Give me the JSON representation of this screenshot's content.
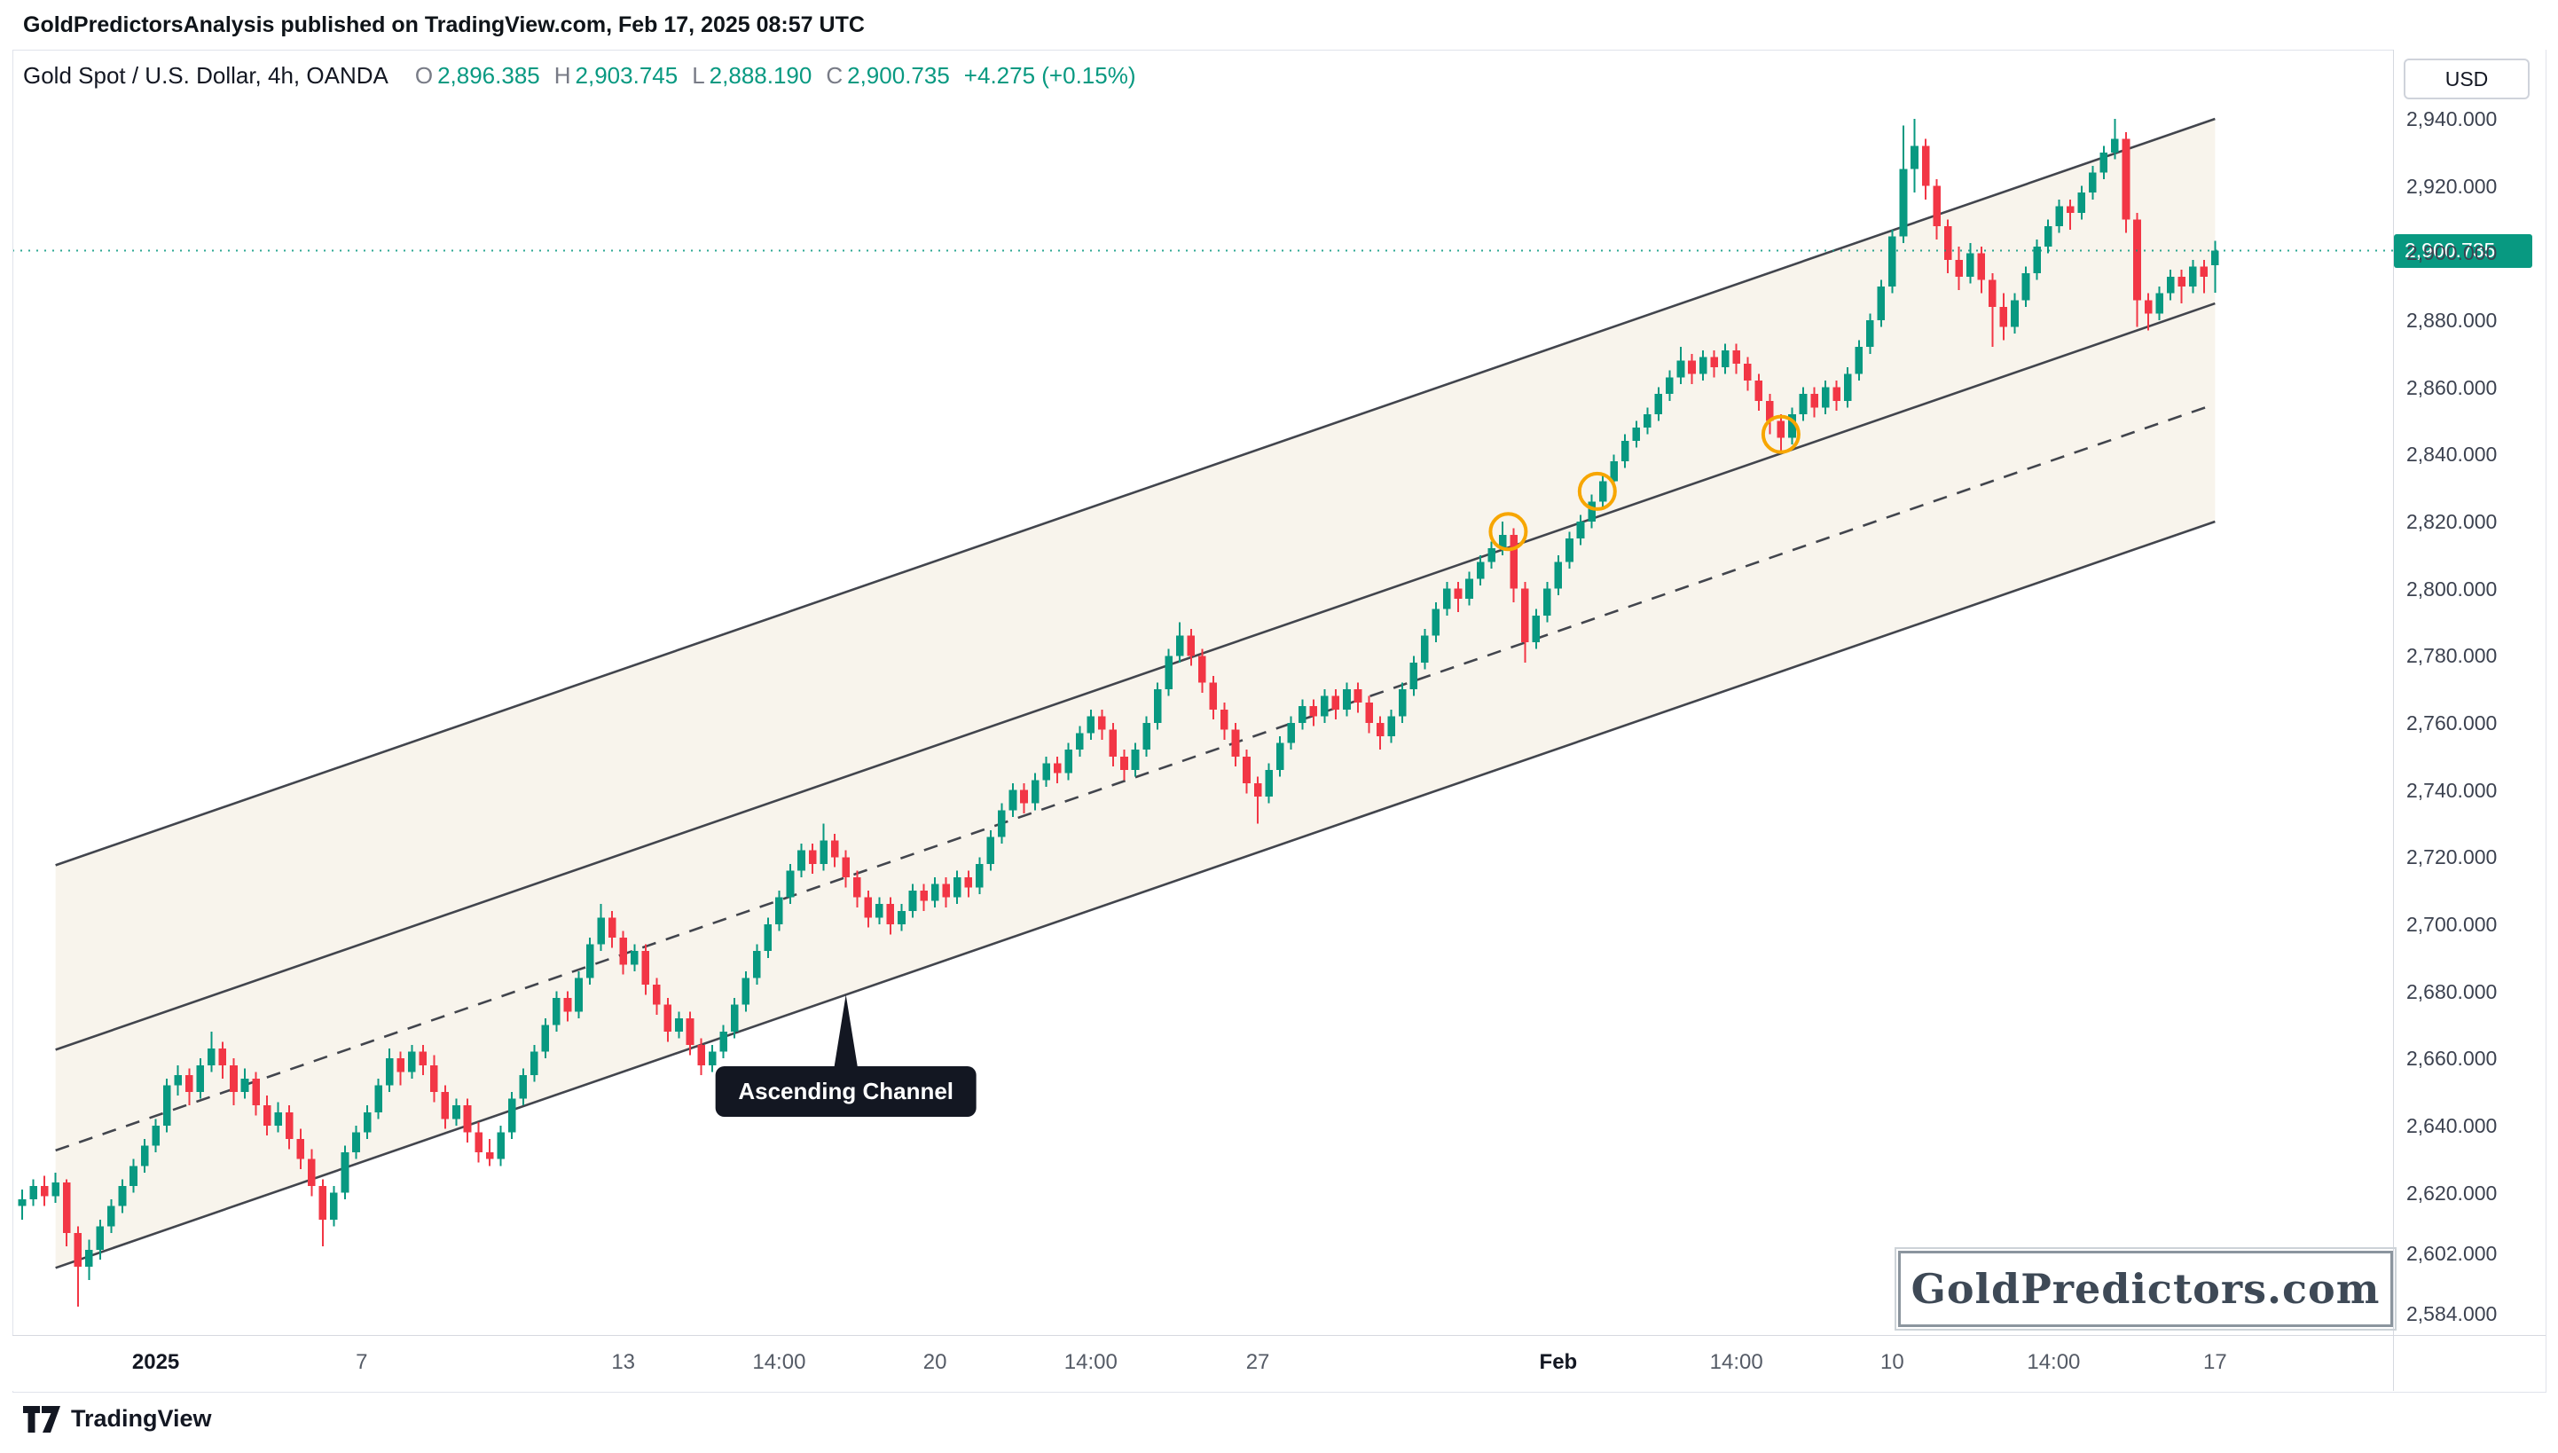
{
  "attribution": "GoldPredictorsAnalysis published on TradingView.com, Feb 17, 2025 08:57 UTC",
  "header": {
    "symbol_line": "Gold Spot / U.S. Dollar, 4h, OANDA",
    "ohlc": [
      {
        "k": "O",
        "v": "2,896.385"
      },
      {
        "k": "H",
        "v": "2,903.745"
      },
      {
        "k": "L",
        "v": "2,888.190"
      },
      {
        "k": "C",
        "v": "2,900.735"
      }
    ],
    "change": "+4.275 (+0.15%)"
  },
  "price_axis": {
    "currency": "USD"
  },
  "annotations": {
    "channel_label": "Ascending Channel",
    "anchor_idx": 74,
    "anchor_price": 2679,
    "watermark": "GoldPredictors.com"
  },
  "footer": {
    "brand": "TradingView"
  },
  "chart_data": {
    "type": "candlestick",
    "title": "Gold Spot / U.S. Dollar, 4h, OANDA",
    "interval": "4h",
    "up_color": "#089981",
    "down_color": "#f23645",
    "ylim": [
      2571,
      2958
    ],
    "grid": false,
    "last_candle": {
      "open": 2896.385,
      "high": 2903.745,
      "low": 2888.19,
      "close": 2900.735,
      "change": 4.275,
      "change_pct": 0.15
    },
    "last_price_line": {
      "price": 2900.735,
      "label": "2,900.735",
      "color": "#089981"
    },
    "price_ticks": [
      {
        "label": "2,940.000",
        "price": 2940
      },
      {
        "label": "2,920.000",
        "price": 2920
      },
      {
        "label": "2,900.000",
        "price": 2900
      },
      {
        "label": "2,880.000",
        "price": 2880
      },
      {
        "label": "2,860.000",
        "price": 2860
      },
      {
        "label": "2,840.000",
        "price": 2840
      },
      {
        "label": "2,820.000",
        "price": 2820
      },
      {
        "label": "2,800.000",
        "price": 2800
      },
      {
        "label": "2,780.000",
        "price": 2780
      },
      {
        "label": "2,760.000",
        "price": 2760
      },
      {
        "label": "2,740.000",
        "price": 2740
      },
      {
        "label": "2,720.000",
        "price": 2720
      },
      {
        "label": "2,700.000",
        "price": 2700
      },
      {
        "label": "2,680.000",
        "price": 2680
      },
      {
        "label": "2,660.000",
        "price": 2660
      },
      {
        "label": "2,640.000",
        "price": 2640
      },
      {
        "label": "2,620.000",
        "price": 2620
      },
      {
        "label": "2,602.000",
        "price": 2602
      },
      {
        "label": "2,584.000",
        "price": 2584
      }
    ],
    "time_ticks": [
      {
        "label": "2025",
        "idx": 12,
        "major": true
      },
      {
        "label": "7",
        "idx": 30.5,
        "major": false
      },
      {
        "label": "13",
        "idx": 54,
        "major": false
      },
      {
        "label": "14:00",
        "idx": 68,
        "major": false
      },
      {
        "label": "20",
        "idx": 82,
        "major": false
      },
      {
        "label": "14:00",
        "idx": 96,
        "major": false
      },
      {
        "label": "27",
        "idx": 111,
        "major": false
      },
      {
        "label": "Feb",
        "idx": 138,
        "major": true
      },
      {
        "label": "14:00",
        "idx": 154,
        "major": false
      },
      {
        "label": "10",
        "idx": 168,
        "major": false
      },
      {
        "label": "14:00",
        "idx": 182.5,
        "major": false
      },
      {
        "label": "17",
        "idx": 197,
        "major": false
      }
    ],
    "channel": {
      "label": "Ascending Channel",
      "color": "#42454d",
      "fill": "rgba(240,231,212,0.45)",
      "lines": [
        {
          "style": "solid",
          "idx1": 3,
          "price1": 2717.6,
          "idx2": 197,
          "price2": 2940
        },
        {
          "style": "solid",
          "idx1": 3,
          "price1": 2662.6,
          "idx2": 197,
          "price2": 2885
        },
        {
          "style": "dashed",
          "idx1": 3,
          "price1": 2632.6,
          "idx2": 197,
          "price2": 2855
        },
        {
          "style": "solid",
          "idx1": 3,
          "price1": 2597.6,
          "idx2": 197,
          "price2": 2820
        }
      ]
    },
    "markers": [
      {
        "idx": 133.5,
        "price": 2817,
        "color": "#f7a600"
      },
      {
        "idx": 141.5,
        "price": 2829,
        "color": "#f7a600"
      },
      {
        "idx": 158,
        "price": 2846,
        "color": "#f7a600"
      }
    ],
    "candles": [
      [
        2616,
        2621,
        2612,
        2618
      ],
      [
        2618,
        2624,
        2616,
        2622
      ],
      [
        2622,
        2625,
        2616,
        2619
      ],
      [
        2619,
        2626,
        2617,
        2623
      ],
      [
        2623,
        2624,
        2604,
        2608
      ],
      [
        2608,
        2610,
        2586,
        2598
      ],
      [
        2598,
        2606,
        2594,
        2603
      ],
      [
        2603,
        2612,
        2600,
        2610
      ],
      [
        2610,
        2618,
        2608,
        2616
      ],
      [
        2616,
        2624,
        2614,
        2622
      ],
      [
        2622,
        2630,
        2620,
        2628
      ],
      [
        2628,
        2636,
        2626,
        2634
      ],
      [
        2634,
        2642,
        2632,
        2640
      ],
      [
        2640,
        2654,
        2638,
        2652
      ],
      [
        2652,
        2658,
        2649,
        2655
      ],
      [
        2655,
        2657,
        2646,
        2650
      ],
      [
        2650,
        2660,
        2648,
        2658
      ],
      [
        2658,
        2668,
        2656,
        2663
      ],
      [
        2663,
        2665,
        2654,
        2658
      ],
      [
        2658,
        2660,
        2646,
        2650
      ],
      [
        2650,
        2657,
        2648,
        2654
      ],
      [
        2654,
        2656,
        2643,
        2646
      ],
      [
        2646,
        2649,
        2637,
        2640
      ],
      [
        2640,
        2647,
        2638,
        2644
      ],
      [
        2644,
        2646,
        2633,
        2636
      ],
      [
        2636,
        2639,
        2627,
        2630
      ],
      [
        2630,
        2633,
        2619,
        2622
      ],
      [
        2622,
        2624,
        2604,
        2612
      ],
      [
        2612,
        2622,
        2610,
        2620
      ],
      [
        2620,
        2634,
        2618,
        2632
      ],
      [
        2632,
        2640,
        2630,
        2638
      ],
      [
        2638,
        2646,
        2636,
        2644
      ],
      [
        2644,
        2654,
        2642,
        2652
      ],
      [
        2652,
        2663,
        2650,
        2660
      ],
      [
        2660,
        2662,
        2652,
        2656
      ],
      [
        2656,
        2664,
        2654,
        2662
      ],
      [
        2662,
        2664,
        2655,
        2658
      ],
      [
        2658,
        2661,
        2647,
        2650
      ],
      [
        2650,
        2652,
        2639,
        2642
      ],
      [
        2642,
        2648,
        2640,
        2646
      ],
      [
        2646,
        2648,
        2635,
        2638
      ],
      [
        2638,
        2641,
        2629,
        2632
      ],
      [
        2632,
        2636,
        2628,
        2630
      ],
      [
        2630,
        2640,
        2628,
        2638
      ],
      [
        2638,
        2650,
        2636,
        2648
      ],
      [
        2648,
        2657,
        2646,
        2655
      ],
      [
        2655,
        2664,
        2653,
        2662
      ],
      [
        2662,
        2672,
        2660,
        2670
      ],
      [
        2670,
        2680,
        2668,
        2678
      ],
      [
        2678,
        2680,
        2671,
        2674
      ],
      [
        2674,
        2686,
        2672,
        2684
      ],
      [
        2684,
        2696,
        2682,
        2694
      ],
      [
        2694,
        2706,
        2692,
        2702
      ],
      [
        2702,
        2704,
        2693,
        2696
      ],
      [
        2696,
        2698,
        2685,
        2688
      ],
      [
        2688,
        2694,
        2686,
        2692
      ],
      [
        2692,
        2694,
        2679,
        2682
      ],
      [
        2682,
        2684,
        2673,
        2676
      ],
      [
        2676,
        2678,
        2665,
        2668
      ],
      [
        2668,
        2674,
        2666,
        2672
      ],
      [
        2672,
        2674,
        2661,
        2664
      ],
      [
        2664,
        2666,
        2655,
        2658
      ],
      [
        2658,
        2664,
        2656,
        2662
      ],
      [
        2662,
        2670,
        2660,
        2668
      ],
      [
        2668,
        2678,
        2666,
        2676
      ],
      [
        2676,
        2686,
        2674,
        2684
      ],
      [
        2684,
        2694,
        2682,
        2692
      ],
      [
        2692,
        2702,
        2690,
        2700
      ],
      [
        2700,
        2710,
        2698,
        2708
      ],
      [
        2708,
        2718,
        2706,
        2716
      ],
      [
        2716,
        2724,
        2714,
        2722
      ],
      [
        2722,
        2724,
        2715,
        2718
      ],
      [
        2718,
        2730,
        2716,
        2725
      ],
      [
        2725,
        2727,
        2717,
        2720
      ],
      [
        2720,
        2722,
        2711,
        2714
      ],
      [
        2714,
        2716,
        2705,
        2708
      ],
      [
        2708,
        2710,
        2699,
        2702
      ],
      [
        2702,
        2708,
        2700,
        2706
      ],
      [
        2706,
        2708,
        2697,
        2700
      ],
      [
        2700,
        2706,
        2698,
        2704
      ],
      [
        2704,
        2712,
        2702,
        2710
      ],
      [
        2710,
        2712,
        2704,
        2707
      ],
      [
        2707,
        2714,
        2705,
        2712
      ],
      [
        2712,
        2714,
        2705,
        2708
      ],
      [
        2708,
        2716,
        2706,
        2714
      ],
      [
        2714,
        2716,
        2708,
        2711
      ],
      [
        2711,
        2720,
        2709,
        2718
      ],
      [
        2718,
        2728,
        2716,
        2726
      ],
      [
        2726,
        2736,
        2724,
        2734
      ],
      [
        2734,
        2742,
        2732,
        2740
      ],
      [
        2740,
        2742,
        2733,
        2736
      ],
      [
        2736,
        2745,
        2734,
        2743
      ],
      [
        2743,
        2750,
        2741,
        2748
      ],
      [
        2748,
        2750,
        2742,
        2745
      ],
      [
        2745,
        2754,
        2743,
        2752
      ],
      [
        2752,
        2759,
        2750,
        2757
      ],
      [
        2757,
        2764,
        2755,
        2762
      ],
      [
        2762,
        2764,
        2755,
        2758
      ],
      [
        2758,
        2760,
        2747,
        2750
      ],
      [
        2750,
        2752,
        2743,
        2746
      ],
      [
        2746,
        2754,
        2744,
        2752
      ],
      [
        2752,
        2762,
        2750,
        2760
      ],
      [
        2760,
        2772,
        2758,
        2770
      ],
      [
        2770,
        2782,
        2768,
        2780
      ],
      [
        2780,
        2790,
        2778,
        2786
      ],
      [
        2786,
        2788,
        2777,
        2780
      ],
      [
        2780,
        2782,
        2769,
        2772
      ],
      [
        2772,
        2774,
        2761,
        2764
      ],
      [
        2764,
        2766,
        2755,
        2758
      ],
      [
        2758,
        2760,
        2747,
        2750
      ],
      [
        2750,
        2752,
        2739,
        2742
      ],
      [
        2742,
        2744,
        2730,
        2738
      ],
      [
        2738,
        2748,
        2736,
        2746
      ],
      [
        2746,
        2756,
        2744,
        2754
      ],
      [
        2754,
        2762,
        2752,
        2760
      ],
      [
        2760,
        2767,
        2758,
        2765
      ],
      [
        2765,
        2767,
        2759,
        2762
      ],
      [
        2762,
        2770,
        2760,
        2768
      ],
      [
        2768,
        2770,
        2761,
        2764
      ],
      [
        2764,
        2772,
        2762,
        2770
      ],
      [
        2770,
        2772,
        2763,
        2766
      ],
      [
        2766,
        2768,
        2757,
        2760
      ],
      [
        2760,
        2762,
        2752,
        2756
      ],
      [
        2756,
        2764,
        2754,
        2762
      ],
      [
        2762,
        2772,
        2760,
        2770
      ],
      [
        2770,
        2780,
        2768,
        2778
      ],
      [
        2778,
        2788,
        2776,
        2786
      ],
      [
        2786,
        2796,
        2784,
        2794
      ],
      [
        2794,
        2802,
        2792,
        2800
      ],
      [
        2800,
        2802,
        2793,
        2797
      ],
      [
        2797,
        2805,
        2795,
        2803
      ],
      [
        2803,
        2810,
        2801,
        2808
      ],
      [
        2808,
        2814,
        2806,
        2812
      ],
      [
        2812,
        2820,
        2810,
        2816
      ],
      [
        2816,
        2818,
        2796,
        2800
      ],
      [
        2800,
        2802,
        2778,
        2784
      ],
      [
        2784,
        2794,
        2782,
        2792
      ],
      [
        2792,
        2802,
        2790,
        2800
      ],
      [
        2800,
        2810,
        2798,
        2808
      ],
      [
        2808,
        2817,
        2806,
        2815
      ],
      [
        2815,
        2822,
        2813,
        2820
      ],
      [
        2820,
        2828,
        2818,
        2826
      ],
      [
        2826,
        2834,
        2824,
        2832
      ],
      [
        2832,
        2840,
        2830,
        2838
      ],
      [
        2838,
        2846,
        2836,
        2844
      ],
      [
        2844,
        2850,
        2842,
        2848
      ],
      [
        2848,
        2854,
        2846,
        2852
      ],
      [
        2852,
        2860,
        2850,
        2858
      ],
      [
        2858,
        2865,
        2856,
        2863
      ],
      [
        2863,
        2872,
        2861,
        2868
      ],
      [
        2868,
        2870,
        2861,
        2864
      ],
      [
        2864,
        2871,
        2862,
        2869
      ],
      [
        2869,
        2871,
        2863,
        2866
      ],
      [
        2866,
        2873,
        2864,
        2871
      ],
      [
        2871,
        2873,
        2864,
        2867
      ],
      [
        2867,
        2869,
        2859,
        2862
      ],
      [
        2862,
        2864,
        2853,
        2856
      ],
      [
        2856,
        2858,
        2846,
        2850
      ],
      [
        2850,
        2852,
        2841,
        2845
      ],
      [
        2845,
        2854,
        2843,
        2852
      ],
      [
        2852,
        2860,
        2850,
        2858
      ],
      [
        2858,
        2860,
        2851,
        2854
      ],
      [
        2854,
        2862,
        2852,
        2860
      ],
      [
        2860,
        2862,
        2853,
        2856
      ],
      [
        2856,
        2866,
        2854,
        2864
      ],
      [
        2864,
        2874,
        2862,
        2872
      ],
      [
        2872,
        2882,
        2870,
        2880
      ],
      [
        2880,
        2892,
        2878,
        2890
      ],
      [
        2890,
        2907,
        2888,
        2905
      ],
      [
        2905,
        2938,
        2903,
        2925
      ],
      [
        2925,
        2940,
        2918,
        2932
      ],
      [
        2932,
        2934,
        2916,
        2920
      ],
      [
        2920,
        2922,
        2904,
        2908
      ],
      [
        2908,
        2910,
        2894,
        2898
      ],
      [
        2898,
        2902,
        2889,
        2893
      ],
      [
        2893,
        2903,
        2891,
        2900
      ],
      [
        2900,
        2902,
        2888,
        2892
      ],
      [
        2892,
        2894,
        2872,
        2884
      ],
      [
        2884,
        2888,
        2874,
        2878
      ],
      [
        2878,
        2888,
        2876,
        2886
      ],
      [
        2886,
        2896,
        2884,
        2894
      ],
      [
        2894,
        2904,
        2892,
        2902
      ],
      [
        2902,
        2910,
        2900,
        2908
      ],
      [
        2908,
        2916,
        2906,
        2914
      ],
      [
        2914,
        2916,
        2907,
        2912
      ],
      [
        2912,
        2920,
        2910,
        2918
      ],
      [
        2918,
        2926,
        2916,
        2924
      ],
      [
        2924,
        2932,
        2922,
        2930
      ],
      [
        2930,
        2940,
        2928,
        2934
      ],
      [
        2934,
        2936,
        2906,
        2910
      ],
      [
        2910,
        2912,
        2878,
        2886
      ],
      [
        2886,
        2888,
        2877,
        2882
      ],
      [
        2882,
        2890,
        2880,
        2888
      ],
      [
        2888,
        2895,
        2886,
        2893
      ],
      [
        2893,
        2895,
        2885,
        2890
      ],
      [
        2890,
        2898,
        2888,
        2896
      ],
      [
        2896,
        2898,
        2888,
        2893
      ],
      [
        2896.4,
        2903.7,
        2888.2,
        2900.7
      ]
    ]
  }
}
